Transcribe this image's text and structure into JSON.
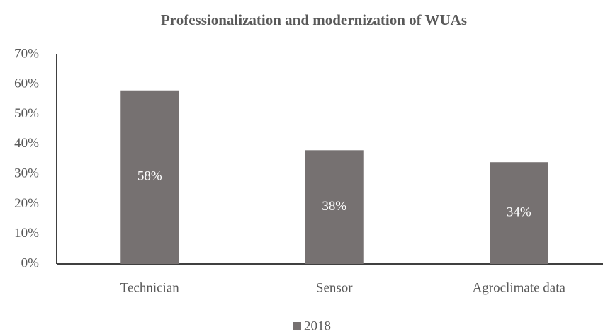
{
  "chart_data": {
    "type": "bar",
    "title": "Professionalization and modernization of WUAs",
    "categories": [
      "Technician",
      "Sensor",
      "Agroclimate data"
    ],
    "series": [
      {
        "name": "2018",
        "color": "#767171",
        "values": [
          58,
          38,
          34
        ],
        "value_labels": [
          "58%",
          "38%",
          "34%"
        ]
      }
    ],
    "ylim": [
      0,
      70
    ],
    "yticks": [
      {
        "value": 0,
        "label": "0%"
      },
      {
        "value": 10,
        "label": "10%"
      },
      {
        "value": 20,
        "label": "20%"
      },
      {
        "value": 30,
        "label": "30%"
      },
      {
        "value": 40,
        "label": "40%"
      },
      {
        "value": 50,
        "label": "50%"
      },
      {
        "value": 60,
        "label": "60%"
      },
      {
        "value": 70,
        "label": "70%"
      }
    ],
    "grid": false,
    "legend": "bottom"
  }
}
